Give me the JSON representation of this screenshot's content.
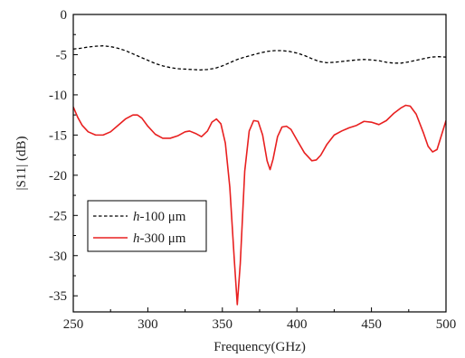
{
  "chart_data": {
    "type": "line",
    "xlabel": "Frequency(GHz)",
    "ylabel": "|S11| (dB)",
    "xlim": [
      250,
      500
    ],
    "ylim": [
      -37,
      0
    ],
    "xticks": [
      250,
      300,
      350,
      400,
      450,
      500
    ],
    "yticks": [
      0,
      -5,
      -10,
      -15,
      -20,
      -25,
      -30,
      -35
    ],
    "legend_position": "lower-left",
    "grid": false,
    "series": [
      {
        "name": "h-100 μm",
        "name_prefix": "h",
        "name_suffix": "-100 μm",
        "style": "dashed",
        "color": "#000000",
        "x": [
          250,
          255,
          260,
          265,
          270,
          275,
          280,
          285,
          290,
          295,
          300,
          305,
          310,
          315,
          320,
          325,
          330,
          335,
          340,
          345,
          350,
          355,
          360,
          365,
          370,
          375,
          380,
          385,
          390,
          395,
          400,
          405,
          410,
          415,
          420,
          425,
          430,
          435,
          440,
          445,
          450,
          455,
          460,
          465,
          470,
          475,
          480,
          485,
          490,
          495,
          500
        ],
        "y": [
          -4.3,
          -4.2,
          -4.05,
          -3.95,
          -3.9,
          -4.0,
          -4.2,
          -4.5,
          -4.9,
          -5.3,
          -5.7,
          -6.1,
          -6.4,
          -6.6,
          -6.75,
          -6.8,
          -6.85,
          -6.9,
          -6.85,
          -6.7,
          -6.4,
          -6.0,
          -5.6,
          -5.3,
          -5.05,
          -4.8,
          -4.6,
          -4.5,
          -4.5,
          -4.6,
          -4.8,
          -5.1,
          -5.5,
          -5.85,
          -6.0,
          -5.95,
          -5.85,
          -5.75,
          -5.65,
          -5.6,
          -5.65,
          -5.75,
          -5.95,
          -6.05,
          -6.05,
          -5.9,
          -5.7,
          -5.5,
          -5.3,
          -5.25,
          -5.3
        ]
      },
      {
        "name": "h-300 μm",
        "name_prefix": "h",
        "name_suffix": "-300 μm",
        "style": "solid",
        "color": "#e82020",
        "x": [
          250,
          253,
          256,
          260,
          265,
          270,
          275,
          280,
          285,
          290,
          293,
          296,
          300,
          305,
          310,
          315,
          320,
          325,
          328,
          332,
          336,
          340,
          343,
          346,
          349,
          352,
          355,
          358,
          360,
          362,
          365,
          368,
          371,
          374,
          377,
          380,
          382,
          384,
          387,
          390,
          393,
          396,
          400,
          405,
          410,
          413,
          416,
          420,
          425,
          430,
          435,
          440,
          445,
          450,
          455,
          460,
          465,
          470,
          473,
          476,
          480,
          485,
          488,
          491,
          494,
          497,
          500
        ],
        "y": [
          -11.5,
          -12.8,
          -13.8,
          -14.6,
          -15.0,
          -15.0,
          -14.6,
          -13.8,
          -13.0,
          -12.5,
          -12.5,
          -12.9,
          -13.9,
          -14.9,
          -15.4,
          -15.4,
          -15.1,
          -14.6,
          -14.5,
          -14.8,
          -15.2,
          -14.5,
          -13.4,
          -13.0,
          -13.6,
          -16.0,
          -21.5,
          -30.5,
          -36.1,
          -31.0,
          -19.5,
          -14.5,
          -13.2,
          -13.3,
          -15.0,
          -18.2,
          -19.3,
          -18.0,
          -15.2,
          -14.0,
          -13.9,
          -14.3,
          -15.6,
          -17.2,
          -18.2,
          -18.1,
          -17.5,
          -16.2,
          -15.0,
          -14.5,
          -14.1,
          -13.8,
          -13.3,
          -13.4,
          -13.7,
          -13.2,
          -12.3,
          -11.6,
          -11.3,
          -11.4,
          -12.4,
          -14.8,
          -16.4,
          -17.1,
          -16.8,
          -15.0,
          -13.2
        ]
      }
    ]
  }
}
